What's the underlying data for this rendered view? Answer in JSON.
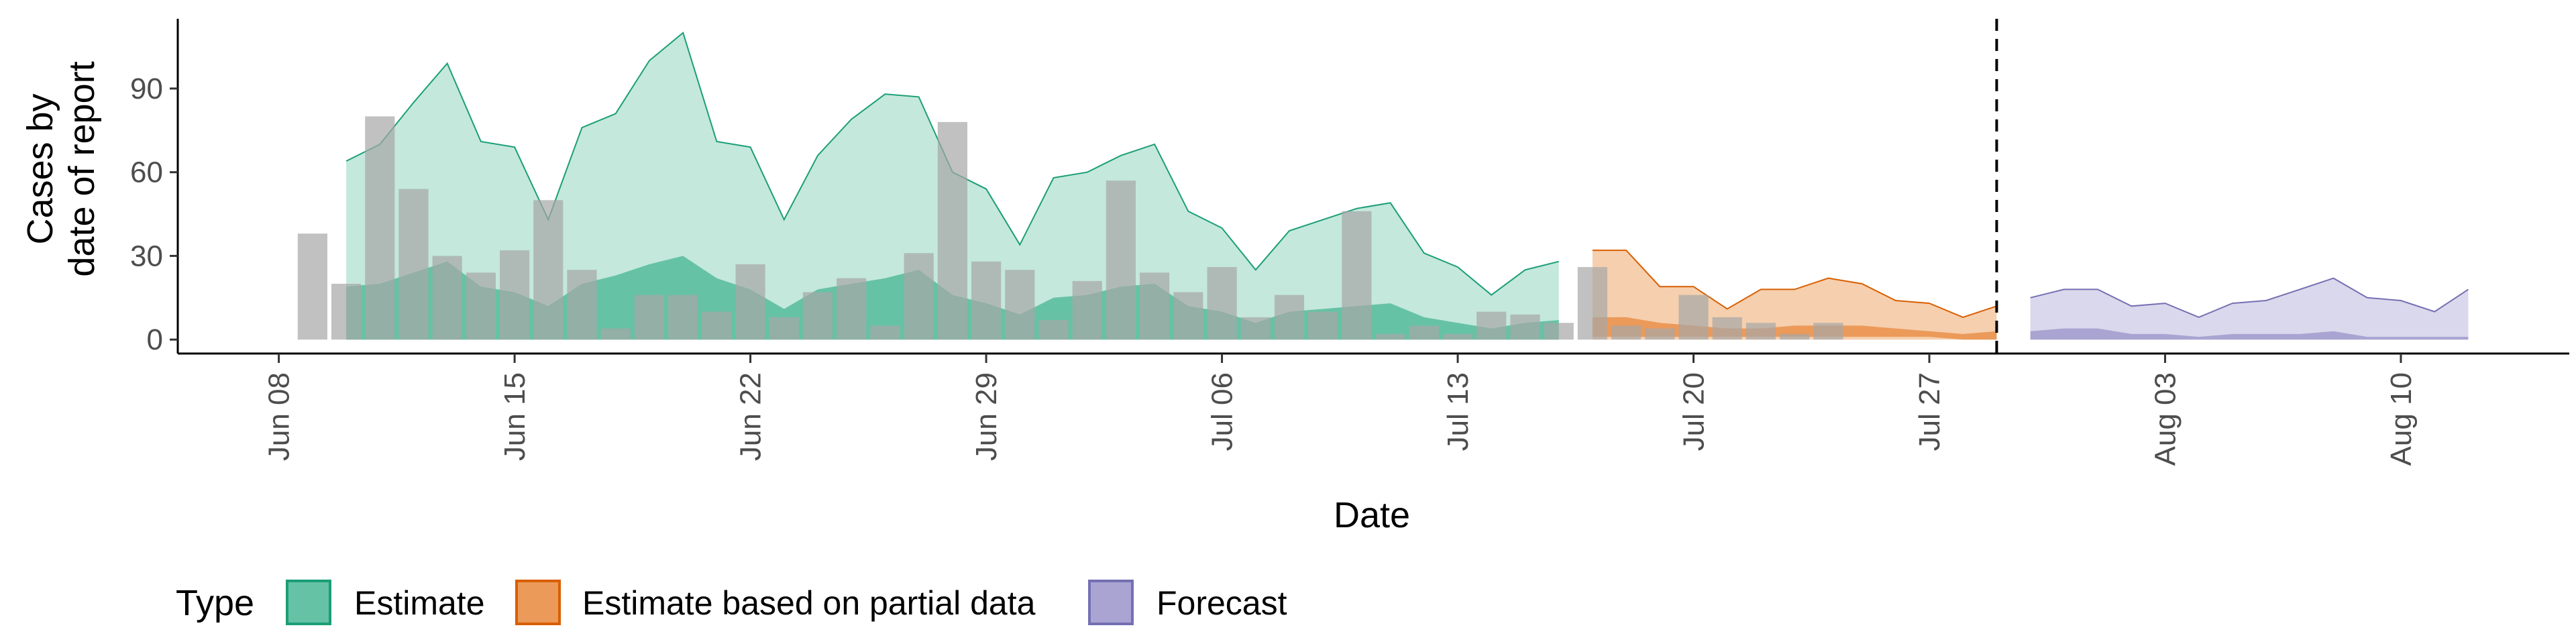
{
  "chart_data": {
    "type": "area",
    "xlabel": "Date",
    "ylabel_lines": [
      "Cases by",
      "date of report"
    ],
    "x_range": [
      "2020-06-05",
      "2020-08-15"
    ],
    "ylim": [
      -5,
      115
    ],
    "y_ticks": [
      0,
      30,
      60,
      90
    ],
    "x_ticks": [
      {
        "date": "2020-06-08",
        "label": "Jun 08"
      },
      {
        "date": "2020-06-15",
        "label": "Jun 15"
      },
      {
        "date": "2020-06-22",
        "label": "Jun 22"
      },
      {
        "date": "2020-06-29",
        "label": "Jun 29"
      },
      {
        "date": "2020-07-06",
        "label": "Jul 06"
      },
      {
        "date": "2020-07-13",
        "label": "Jul 13"
      },
      {
        "date": "2020-07-20",
        "label": "Jul 20"
      },
      {
        "date": "2020-07-27",
        "label": "Jul 27"
      },
      {
        "date": "2020-08-03",
        "label": "Aug 03"
      },
      {
        "date": "2020-08-10",
        "label": "Aug 10"
      }
    ],
    "forecast_line_date": "2020-07-29",
    "grid": false,
    "legend": {
      "title": "Type",
      "position": "bottom",
      "items": [
        {
          "label": "Estimate",
          "fill": "#66c2a5",
          "stroke": "#1b9e77"
        },
        {
          "label": "Estimate based on partial data",
          "fill": "#eb9a5a",
          "stroke": "#d95f02"
        },
        {
          "label": "Forecast",
          "fill": "#a9a4d2",
          "stroke": "#7570b3"
        }
      ]
    },
    "series": [
      {
        "name": "Estimate",
        "fill_outer": "#c4e8dc",
        "fill_inner": "#66c2a5",
        "stroke": "#1b9e77",
        "start_date": "2020-06-10",
        "outer_upper": [
          64,
          70,
          85,
          99,
          71,
          69,
          43,
          76,
          81,
          100,
          110,
          71,
          69,
          43,
          66,
          79,
          88,
          87,
          60,
          54,
          34,
          58,
          60,
          66,
          70,
          46,
          40,
          25,
          39,
          43,
          47,
          49,
          31,
          26,
          16,
          25,
          28
        ],
        "inner_upper": [
          19,
          20,
          24,
          28,
          19,
          17,
          12,
          20,
          23,
          27,
          30,
          22,
          18,
          11,
          18,
          20,
          22,
          25,
          16,
          13,
          9,
          15,
          16,
          19,
          20,
          12,
          10,
          6,
          10,
          11,
          12,
          13,
          8,
          6,
          4,
          6,
          7
        ],
        "inner_lower": [
          0,
          0,
          0,
          0,
          0,
          0,
          0,
          0,
          0,
          0,
          0,
          0,
          0,
          0,
          0,
          0,
          0,
          0,
          0,
          0,
          0,
          0,
          0,
          0,
          0,
          0,
          0,
          0,
          0,
          0,
          0,
          0,
          0,
          0,
          0,
          0,
          0
        ]
      },
      {
        "name": "Estimate based on partial data",
        "fill_outer": "#f5cfae",
        "fill_inner": "#eb9a5a",
        "stroke": "#d95f02",
        "start_date": "2020-07-17",
        "outer_upper": [
          32,
          32,
          19,
          19,
          11,
          18,
          18,
          22,
          20,
          14,
          13,
          8,
          12
        ],
        "inner_upper": [
          8,
          8,
          6,
          5,
          4,
          4,
          5,
          5,
          5,
          4,
          3,
          2,
          3
        ],
        "inner_lower": [
          1,
          1,
          1,
          1,
          1,
          1,
          1,
          1,
          1,
          1,
          1,
          0,
          0
        ]
      },
      {
        "name": "Forecast",
        "fill_outer": "#dad8ec",
        "fill_inner": "#a9a4d2",
        "stroke": "#7570b3",
        "start_date": "2020-07-30",
        "outer_upper": [
          15,
          18,
          18,
          12,
          13,
          8,
          13,
          14,
          18,
          22,
          15,
          14,
          10,
          18
        ],
        "inner_upper": [
          3,
          4,
          4,
          2,
          2,
          1,
          2,
          2,
          2,
          3,
          1,
          1,
          1,
          1
        ],
        "inner_lower": [
          0,
          0,
          0,
          0,
          0,
          0,
          0,
          0,
          0,
          0,
          0,
          0,
          0,
          0
        ]
      }
    ],
    "reported_cases": {
      "bar_color": "#a6a6a6",
      "start_date": "2020-06-09",
      "values": [
        38,
        20,
        80,
        54,
        30,
        24,
        32,
        50,
        25,
        4,
        16,
        16,
        10,
        27,
        8,
        17,
        22,
        5,
        31,
        78,
        28,
        25,
        7,
        21,
        57,
        24,
        17,
        26,
        8,
        16,
        10,
        46,
        2,
        5,
        2,
        10,
        9,
        6,
        26,
        5,
        4,
        16,
        8,
        6,
        2,
        6
      ]
    }
  }
}
